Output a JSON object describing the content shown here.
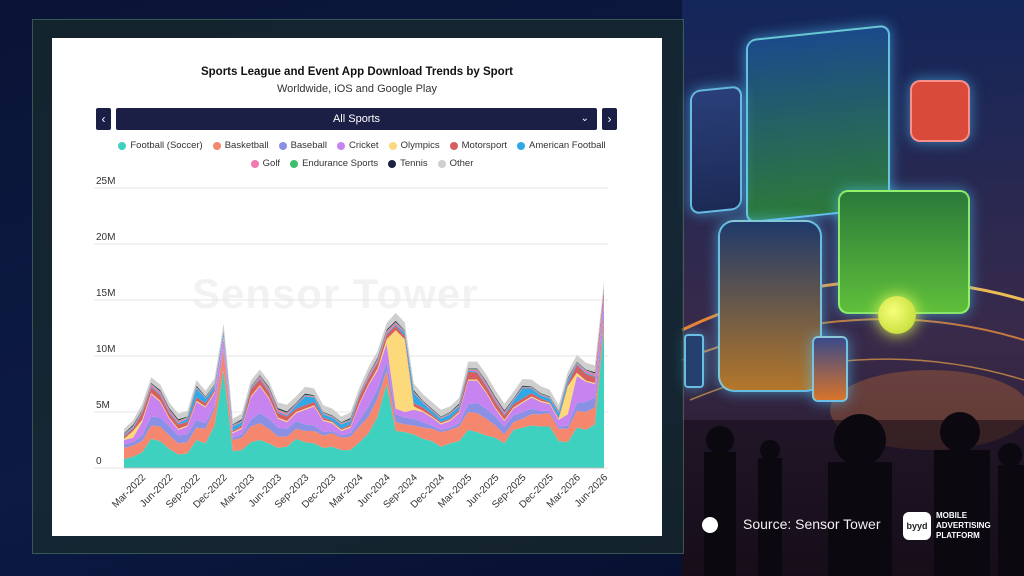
{
  "chart_data": {
    "type": "area",
    "stacked": true,
    "title": "Sports League and Event App Download Trends by Sport",
    "subtitle": "Worldwide, iOS and Google Play",
    "filter": {
      "selected": "All Sports",
      "prev_icon": "chevron-left-icon",
      "next_icon": "chevron-right-icon"
    },
    "watermark": "Sensor Tower",
    "ylim": [
      0,
      25000000
    ],
    "yticks": [
      "0",
      "5M",
      "10M",
      "15M",
      "20M",
      "25M"
    ],
    "xticks": [
      "Mar-2022",
      "Jun-2022",
      "Sep-2022",
      "Dec-2022",
      "Mar-2023",
      "Jun-2023",
      "Sep-2023",
      "Dec-2023",
      "Mar-2024",
      "Jun-2024",
      "Sep-2024",
      "Dec-2024",
      "Mar-2025",
      "Jun-2025",
      "Sep-2025",
      "Dec-2025",
      "Mar-2026",
      "Jun-2026"
    ],
    "x": [
      "Jan-2022",
      "Feb-2022",
      "Mar-2022",
      "Apr-2022",
      "May-2022",
      "Jun-2022",
      "Jul-2022",
      "Aug-2022",
      "Sep-2022",
      "Oct-2022",
      "Nov-2022",
      "Dec-2022",
      "Jan-2023",
      "Feb-2023",
      "Mar-2023",
      "Apr-2023",
      "May-2023",
      "Jun-2023",
      "Jul-2023",
      "Aug-2023",
      "Sep-2023",
      "Oct-2023",
      "Nov-2023",
      "Dec-2023",
      "Jan-2024",
      "Feb-2024",
      "Mar-2024",
      "Apr-2024",
      "May-2024",
      "Jun-2024",
      "Jul-2024",
      "Aug-2024",
      "Sep-2024",
      "Oct-2024",
      "Nov-2024",
      "Dec-2024",
      "Jan-2025",
      "Feb-2025",
      "Mar-2025",
      "Apr-2025",
      "May-2025",
      "Jun-2025",
      "Jul-2025",
      "Aug-2025",
      "Sep-2025",
      "Oct-2025",
      "Nov-2025",
      "Dec-2025",
      "Jan-2026",
      "Feb-2026",
      "Mar-2026",
      "Apr-2026",
      "May-2026",
      "Jun-2026"
    ],
    "series": [
      {
        "name": "Football (Soccer)",
        "color": "#3fd1bf",
        "values": [
          0.8,
          1.0,
          1.4,
          2.6,
          2.4,
          1.7,
          1.2,
          1.3,
          2.5,
          2.2,
          3.8,
          8.7,
          1.5,
          1.6,
          2.3,
          2.5,
          2.2,
          1.8,
          1.9,
          2.6,
          2.3,
          2.2,
          1.8,
          1.9,
          1.6,
          1.6,
          2.3,
          3.1,
          4.6,
          7.5,
          3.3,
          3.2,
          3.0,
          2.6,
          2.4,
          1.9,
          2.2,
          2.4,
          3.4,
          3.2,
          2.9,
          2.7,
          2.2,
          3.4,
          3.6,
          3.8,
          3.7,
          3.7,
          2.4,
          2.3,
          3.6,
          3.4,
          3.9,
          12.5
        ]
      },
      {
        "name": "Basketball",
        "color": "#f4876e",
        "values": [
          1.0,
          1.0,
          1.0,
          1.2,
          1.3,
          1.2,
          1.0,
          1.0,
          1.1,
          1.3,
          1.5,
          1.8,
          1.0,
          1.1,
          1.4,
          1.5,
          1.3,
          1.0,
          0.9,
          0.9,
          1.0,
          1.1,
          1.1,
          1.2,
          1.1,
          1.2,
          1.4,
          1.5,
          1.6,
          1.2,
          0.8,
          0.7,
          0.8,
          1.0,
          1.1,
          1.3,
          1.2,
          1.3,
          1.6,
          1.7,
          1.5,
          1.1,
          0.8,
          0.7,
          0.8,
          1.0,
          1.1,
          1.2,
          1.1,
          1.2,
          1.5,
          1.6,
          1.5,
          1.0
        ]
      },
      {
        "name": "Baseball",
        "color": "#8a90e3",
        "values": [
          0.3,
          0.3,
          0.5,
          0.8,
          0.8,
          0.8,
          0.7,
          0.7,
          0.7,
          0.5,
          0.3,
          0.2,
          0.2,
          0.3,
          0.6,
          0.9,
          0.9,
          0.8,
          0.7,
          0.7,
          0.6,
          0.5,
          0.3,
          0.2,
          0.2,
          0.3,
          0.6,
          0.9,
          0.9,
          0.8,
          0.7,
          0.6,
          0.6,
          0.5,
          0.3,
          0.2,
          0.2,
          0.3,
          0.7,
          0.9,
          0.9,
          0.8,
          0.7,
          0.6,
          0.6,
          0.5,
          0.3,
          0.2,
          0.2,
          0.3,
          0.7,
          0.9,
          0.9,
          0.8
        ]
      },
      {
        "name": "Cricket",
        "color": "#c784f0",
        "values": [
          0.4,
          0.4,
          1.2,
          2.0,
          1.4,
          0.7,
          0.5,
          0.7,
          1.6,
          1.4,
          1.1,
          0.9,
          0.4,
          0.5,
          2.0,
          2.4,
          1.8,
          0.8,
          0.6,
          0.7,
          1.3,
          1.7,
          1.0,
          0.7,
          0.4,
          0.5,
          1.4,
          1.9,
          1.6,
          1.6,
          0.5,
          0.5,
          0.8,
          0.9,
          0.7,
          0.5,
          0.6,
          0.9,
          2.1,
          2.0,
          1.4,
          0.7,
          0.5,
          0.6,
          0.8,
          1.0,
          0.8,
          0.6,
          0.6,
          1.0,
          2.4,
          1.8,
          1.2,
          0.8
        ]
      },
      {
        "name": "Olympics",
        "color": "#fcd97a",
        "values": [
          0.1,
          0.6,
          0.2,
          0.1,
          0.1,
          0.1,
          0.1,
          0.1,
          0.1,
          0.1,
          0.1,
          0.1,
          0.1,
          0.1,
          0.1,
          0.1,
          0.1,
          0.1,
          0.1,
          0.1,
          0.1,
          0.1,
          0.1,
          0.1,
          0.1,
          0.1,
          0.1,
          0.1,
          0.2,
          0.4,
          7.0,
          6.5,
          0.3,
          0.1,
          0.1,
          0.1,
          0.1,
          0.1,
          0.1,
          0.1,
          0.1,
          0.1,
          0.1,
          0.1,
          0.1,
          0.1,
          0.1,
          0.1,
          0.1,
          2.5,
          0.3,
          0.1,
          0.1,
          0.1
        ]
      },
      {
        "name": "Motorsport",
        "color": "#d65f5f",
        "values": [
          0.2,
          0.2,
          0.6,
          0.5,
          0.5,
          0.4,
          0.4,
          0.3,
          0.3,
          0.3,
          0.2,
          0.1,
          0.1,
          0.2,
          0.6,
          0.5,
          0.5,
          0.4,
          0.4,
          0.3,
          0.3,
          0.3,
          0.2,
          0.1,
          0.1,
          0.2,
          0.6,
          0.5,
          0.5,
          0.4,
          0.4,
          0.3,
          0.3,
          0.3,
          0.2,
          0.1,
          0.1,
          0.2,
          0.7,
          0.6,
          0.5,
          0.5,
          0.4,
          0.3,
          0.3,
          0.3,
          0.2,
          0.1,
          0.1,
          0.2,
          0.7,
          0.6,
          0.5,
          0.5
        ]
      },
      {
        "name": "American Football",
        "color": "#2fa8e8",
        "values": [
          0.1,
          0.1,
          0.1,
          0.1,
          0.1,
          0.1,
          0.1,
          0.3,
          0.8,
          0.4,
          0.3,
          0.3,
          0.4,
          0.3,
          0.1,
          0.1,
          0.1,
          0.1,
          0.1,
          0.3,
          0.8,
          0.4,
          0.3,
          0.3,
          0.4,
          0.3,
          0.1,
          0.1,
          0.1,
          0.1,
          0.1,
          0.3,
          0.9,
          0.4,
          0.3,
          0.3,
          0.4,
          0.3,
          0.1,
          0.1,
          0.1,
          0.1,
          0.1,
          0.3,
          0.9,
          0.4,
          0.3,
          0.3,
          0.4,
          0.3,
          0.1,
          0.1,
          0.1,
          0.1
        ]
      },
      {
        "name": "Golf",
        "color": "#f07ab0",
        "values": [
          0.1,
          0.1,
          0.1,
          0.2,
          0.2,
          0.2,
          0.2,
          0.1,
          0.1,
          0.1,
          0.1,
          0.1,
          0.1,
          0.1,
          0.1,
          0.2,
          0.2,
          0.2,
          0.2,
          0.1,
          0.1,
          0.1,
          0.1,
          0.1,
          0.1,
          0.1,
          0.1,
          0.2,
          0.2,
          0.2,
          0.2,
          0.1,
          0.1,
          0.1,
          0.1,
          0.1,
          0.1,
          0.1,
          0.1,
          0.2,
          0.2,
          0.2,
          0.2,
          0.1,
          0.1,
          0.1,
          0.1,
          0.1,
          0.1,
          0.1,
          0.1,
          0.2,
          0.2,
          0.2
        ]
      },
      {
        "name": "Endurance Sports",
        "color": "#3bbf6a",
        "values": [
          0.05,
          0.05,
          0.05,
          0.05,
          0.05,
          0.05,
          0.05,
          0.05,
          0.05,
          0.05,
          0.05,
          0.05,
          0.05,
          0.05,
          0.05,
          0.05,
          0.05,
          0.05,
          0.05,
          0.05,
          0.05,
          0.05,
          0.05,
          0.05,
          0.05,
          0.05,
          0.05,
          0.05,
          0.05,
          0.05,
          0.05,
          0.05,
          0.05,
          0.05,
          0.05,
          0.05,
          0.05,
          0.05,
          0.05,
          0.05,
          0.05,
          0.05,
          0.05,
          0.05,
          0.05,
          0.05,
          0.05,
          0.05,
          0.05,
          0.05,
          0.05,
          0.05,
          0.05,
          0.05
        ]
      },
      {
        "name": "Tennis",
        "color": "#1c2340",
        "values": [
          0.05,
          0.1,
          0.05,
          0.05,
          0.1,
          0.1,
          0.1,
          0.05,
          0.1,
          0.05,
          0.05,
          0.05,
          0.05,
          0.1,
          0.05,
          0.05,
          0.1,
          0.1,
          0.1,
          0.05,
          0.1,
          0.05,
          0.05,
          0.05,
          0.05,
          0.1,
          0.05,
          0.05,
          0.1,
          0.1,
          0.1,
          0.05,
          0.1,
          0.05,
          0.05,
          0.05,
          0.05,
          0.1,
          0.05,
          0.05,
          0.1,
          0.1,
          0.1,
          0.05,
          0.1,
          0.05,
          0.05,
          0.05,
          0.05,
          0.1,
          0.05,
          0.05,
          0.1,
          0.1
        ]
      },
      {
        "name": "Other",
        "color": "#cfcfcf",
        "values": [
          0.4,
          0.4,
          0.5,
          0.5,
          0.5,
          0.5,
          0.5,
          0.5,
          0.5,
          0.5,
          0.5,
          0.6,
          0.5,
          0.5,
          0.5,
          0.5,
          0.5,
          0.5,
          0.6,
          0.6,
          0.6,
          0.6,
          0.6,
          0.6,
          0.5,
          0.5,
          0.5,
          0.6,
          0.6,
          0.6,
          0.7,
          0.7,
          0.6,
          0.6,
          0.6,
          0.6,
          0.5,
          0.5,
          0.6,
          0.6,
          0.6,
          0.6,
          0.6,
          0.6,
          0.6,
          0.6,
          0.6,
          0.6,
          0.5,
          0.5,
          0.6,
          0.6,
          0.6,
          0.5
        ]
      }
    ],
    "legend_placement": "top",
    "grid": true
  },
  "footer": {
    "source": "Source: Sensor Tower",
    "brand_mark": "byyd",
    "brand_tagline": "MOBILE ADVERTISING PLATFORM"
  }
}
